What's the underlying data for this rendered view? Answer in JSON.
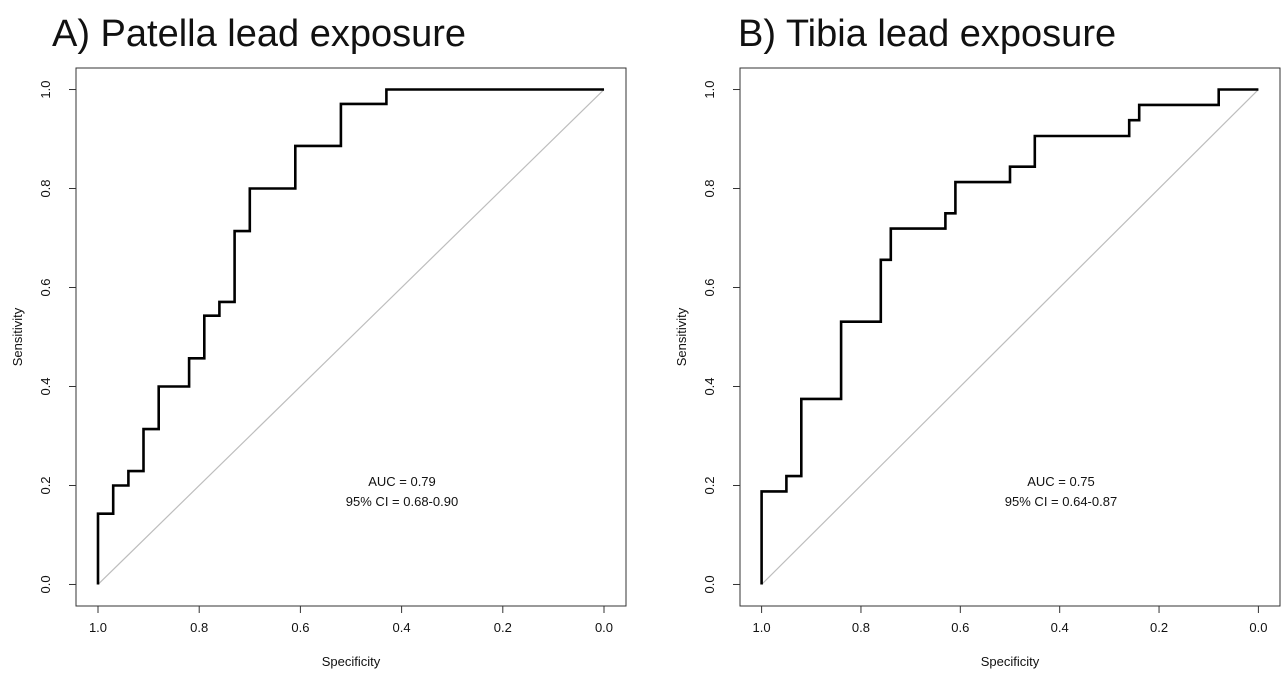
{
  "chart_data": [
    {
      "type": "line",
      "title": "A) Patella lead exposure",
      "xlabel": "Specificity",
      "ylabel": "Sensitivity",
      "xlim": [
        1.0,
        0.0
      ],
      "ylim": [
        0.0,
        1.0
      ],
      "x_ticks": [
        "1.0",
        "0.8",
        "0.6",
        "0.4",
        "0.2",
        "0.0"
      ],
      "y_ticks": [
        "0.0",
        "0.2",
        "0.4",
        "0.6",
        "0.8",
        "1.0"
      ],
      "grid": false,
      "reference_line": [
        [
          1.0,
          0.0
        ],
        [
          0.0,
          1.0
        ]
      ],
      "series": [
        {
          "specificity": [
            1.0,
            1.0,
            0.97,
            0.97,
            0.94,
            0.94,
            0.91,
            0.91,
            0.88,
            0.88,
            0.82,
            0.82,
            0.79,
            0.79,
            0.76,
            0.76,
            0.73,
            0.73,
            0.7,
            0.7,
            0.61,
            0.61,
            0.52,
            0.52,
            0.43,
            0.43,
            0.0
          ],
          "sensitivity": [
            0.0,
            0.143,
            0.143,
            0.2,
            0.2,
            0.229,
            0.229,
            0.314,
            0.314,
            0.4,
            0.4,
            0.457,
            0.457,
            0.543,
            0.543,
            0.571,
            0.571,
            0.714,
            0.714,
            0.8,
            0.8,
            0.886,
            0.886,
            0.971,
            0.971,
            1.0,
            1.0
          ]
        }
      ],
      "annotation": [
        "AUC = 0.79",
        "95% CI = 0.68-0.90"
      ]
    },
    {
      "type": "line",
      "title": "B) Tibia lead exposure",
      "xlabel": "Specificity",
      "ylabel": "Sensitivity",
      "xlim": [
        1.0,
        0.0
      ],
      "ylim": [
        0.0,
        1.0
      ],
      "x_ticks": [
        "1.0",
        "0.8",
        "0.6",
        "0.4",
        "0.2",
        "0.0"
      ],
      "y_ticks": [
        "0.0",
        "0.2",
        "0.4",
        "0.6",
        "0.8",
        "1.0"
      ],
      "grid": false,
      "reference_line": [
        [
          1.0,
          0.0
        ],
        [
          0.0,
          1.0
        ]
      ],
      "series": [
        {
          "specificity": [
            1.0,
            1.0,
            0.95,
            0.95,
            0.92,
            0.92,
            0.84,
            0.84,
            0.76,
            0.76,
            0.74,
            0.74,
            0.63,
            0.63,
            0.61,
            0.61,
            0.5,
            0.5,
            0.45,
            0.45,
            0.26,
            0.26,
            0.24,
            0.24,
            0.08,
            0.08,
            0.0
          ],
          "sensitivity": [
            0.0,
            0.188,
            0.188,
            0.219,
            0.219,
            0.375,
            0.375,
            0.531,
            0.531,
            0.656,
            0.656,
            0.719,
            0.719,
            0.75,
            0.75,
            0.813,
            0.813,
            0.844,
            0.844,
            0.906,
            0.906,
            0.938,
            0.938,
            0.969,
            0.969,
            1.0,
            1.0
          ]
        }
      ],
      "annotation": [
        "AUC = 0.75",
        "95% CI = 0.64-0.87"
      ]
    }
  ]
}
